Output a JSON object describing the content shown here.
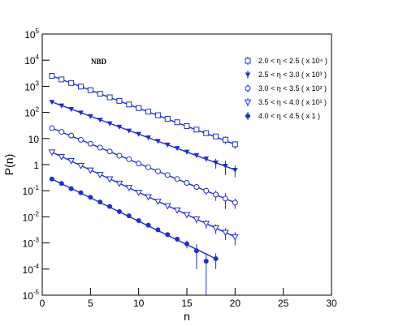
{
  "chart_data": {
    "type": "scatter",
    "log_y": true,
    "xlabel": "n",
    "ylabel": "P(n)",
    "annotation": "NBD",
    "xlim": [
      0,
      30
    ],
    "xticks": [
      0,
      5,
      10,
      15,
      20,
      25,
      30
    ],
    "ylim": [
      1e-05,
      100000
    ],
    "yticks": [
      {
        "value": 1e-05,
        "label": "10",
        "exponent": "-5"
      },
      {
        "value": 0.0001,
        "label": "10",
        "exponent": "-4"
      },
      {
        "value": 0.001,
        "label": "10",
        "exponent": "-3"
      },
      {
        "value": 0.01,
        "label": "10",
        "exponent": "-2"
      },
      {
        "value": 0.1,
        "label": "10",
        "exponent": "-1"
      },
      1,
      10,
      {
        "value": 100,
        "label": "10",
        "exponent": "2"
      },
      {
        "value": 1000,
        "label": "10",
        "exponent": "3"
      },
      {
        "value": 10000,
        "label": "10",
        "exponent": "4"
      },
      {
        "value": 100000,
        "label": "10",
        "exponent": "5"
      }
    ],
    "series": [
      {
        "name": "2.0 < η < 2.5 ( x 10⁴ )",
        "color": "#1f2fd0",
        "marker": "open-square",
        "x": [
          1,
          2,
          3,
          4,
          5,
          6,
          7,
          8,
          9,
          10,
          11,
          12,
          13,
          14,
          15,
          16,
          17,
          18,
          19,
          20
        ],
        "values": [
          2512,
          1832,
          1337,
          975,
          711,
          519,
          378,
          276,
          201,
          147,
          107,
          78,
          57,
          42,
          30,
          22,
          16,
          12,
          9,
          6
        ],
        "errors": [
          40,
          30,
          22,
          16,
          12,
          9,
          7,
          5,
          4,
          3,
          2.5,
          2,
          1.8,
          1.5,
          1.3,
          1.2,
          3,
          2,
          3,
          2
        ],
        "fit": {
          "x": [
            1,
            20
          ],
          "y": [
            2512,
            6
          ]
        }
      },
      {
        "name": "2.5 < η < 3.0 ( x 10³ )",
        "color": "#1f2fd0",
        "marker": "filled-triangle",
        "x": [
          1,
          2,
          3,
          4,
          5,
          6,
          7,
          8,
          9,
          10,
          11,
          12,
          13,
          14,
          15,
          16,
          17,
          18,
          19,
          20
        ],
        "values": [
          251,
          184,
          134,
          98,
          72,
          52,
          38,
          28,
          20,
          15,
          11,
          8,
          5.8,
          4.3,
          3.1,
          2.3,
          1.7,
          1.2,
          0.9,
          0.63
        ],
        "errors": [
          4,
          3,
          2,
          1.5,
          1.1,
          0.8,
          0.6,
          0.5,
          0.4,
          0.3,
          0.3,
          0.2,
          0.2,
          0.2,
          0.3,
          0.3,
          0.4,
          0.5,
          0.5,
          0.3
        ],
        "fit": {
          "x": [
            1,
            20
          ],
          "y": [
            251,
            0.63
          ]
        }
      },
      {
        "name": "3.0 < η < 3.5 ( x 10² )",
        "color": "#1f2fd0",
        "marker": "open-circle",
        "x": [
          1,
          2,
          3,
          4,
          5,
          6,
          7,
          8,
          9,
          10,
          11,
          12,
          13,
          14,
          15,
          16,
          17,
          18,
          19,
          20
        ],
        "values": [
          25,
          18,
          13,
          8.9,
          6.3,
          4.5,
          3.2,
          2.2,
          1.6,
          1.1,
          0.79,
          0.56,
          0.4,
          0.28,
          0.2,
          0.14,
          0.1,
          0.071,
          0.05,
          0.035
        ],
        "errors": [
          0.4,
          0.3,
          0.2,
          0.15,
          0.1,
          0.08,
          0.06,
          0.05,
          0.04,
          0.03,
          0.03,
          0.02,
          0.02,
          0.02,
          0.02,
          0.03,
          0.03,
          0.03,
          0.03,
          0.015
        ],
        "fit": {
          "x": [
            1,
            20
          ],
          "y": [
            25,
            0.035
          ]
        }
      },
      {
        "name": "3.5 < η < 4.0 ( x 10¹ )",
        "color": "#1f2fd0",
        "marker": "open-triangle",
        "x": [
          1,
          2,
          3,
          4,
          5,
          6,
          7,
          8,
          9,
          10,
          11,
          12,
          13,
          14,
          15,
          16,
          17,
          18,
          19,
          20
        ],
        "values": [
          3.0,
          2.0,
          1.4,
          0.91,
          0.61,
          0.41,
          0.28,
          0.19,
          0.13,
          0.085,
          0.058,
          0.039,
          0.026,
          0.018,
          0.012,
          0.0081,
          0.0055,
          0.0037,
          0.0025,
          0.0017
        ],
        "errors": [
          0.05,
          0.03,
          0.02,
          0.015,
          0.01,
          0.007,
          0.005,
          0.004,
          0.003,
          0.002,
          0.0015,
          0.0012,
          0.001,
          0.0009,
          0.003,
          0.0025,
          0.002,
          0.0015,
          0.0012,
          0.0009
        ],
        "fit": {
          "x": [
            1,
            20
          ],
          "y": [
            3.0,
            0.0017
          ]
        }
      },
      {
        "name": "4.0 < η < 4.5 ( x 1 )",
        "color": "#1f2fd0",
        "marker": "filled-circle",
        "x": [
          1,
          2,
          3,
          4,
          5,
          6,
          7,
          8,
          9,
          10,
          11,
          12,
          13,
          14,
          15,
          16,
          17,
          18
        ],
        "values": [
          0.28,
          0.19,
          0.12,
          0.084,
          0.056,
          0.037,
          0.025,
          0.016,
          0.011,
          0.0072,
          0.0048,
          0.0032,
          0.0021,
          0.0014,
          0.00092,
          0.0005,
          0.0002,
          0.00025
        ],
        "errors": [
          0.005,
          0.003,
          0.002,
          0.0015,
          0.001,
          0.0007,
          0.0005,
          0.0004,
          0.0003,
          0.0002,
          0.0003,
          0.0006,
          0.0004,
          0.0003,
          0.0003,
          0.0004,
          0.00019,
          0.00015
        ],
        "fit": {
          "x": [
            1,
            18
          ],
          "y": [
            0.28,
            0.00025
          ]
        }
      }
    ]
  }
}
